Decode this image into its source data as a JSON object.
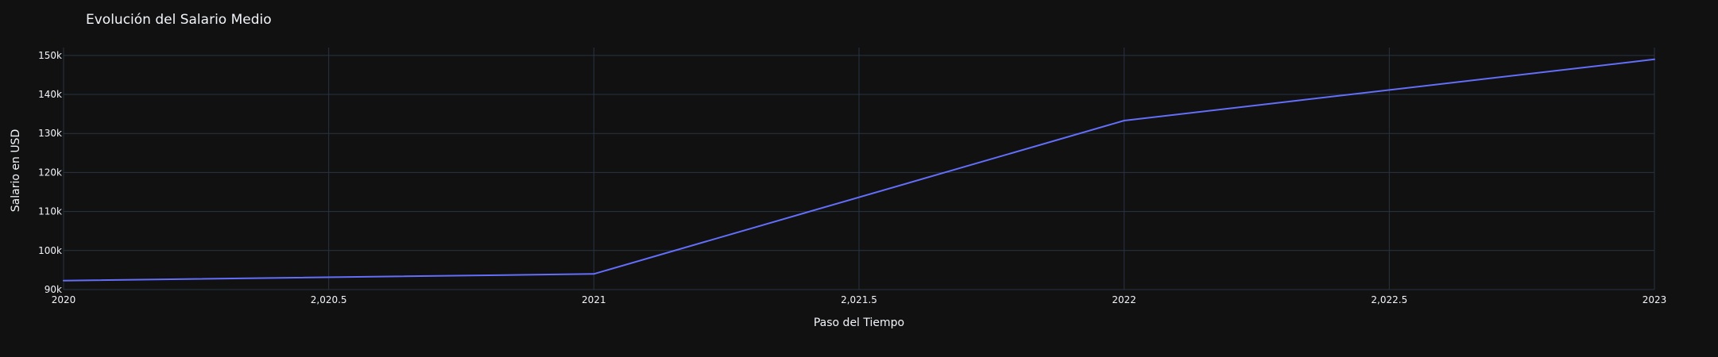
{
  "chart_data": {
    "type": "line",
    "title": "Evolución del Salario Medio",
    "xlabel": "Paso del Tiempo",
    "ylabel": "Salario en USD",
    "xlim": [
      2020,
      2023
    ],
    "ylim": [
      90000,
      152000
    ],
    "x_ticks": [
      2020,
      2020.5,
      2021,
      2021.5,
      2022,
      2022.5,
      2023
    ],
    "x_tick_labels": [
      "2020",
      "2,020.5",
      "2021",
      "2,021.5",
      "2022",
      "2,022.5",
      "2023"
    ],
    "y_ticks": [
      90000,
      100000,
      110000,
      120000,
      130000,
      140000,
      150000
    ],
    "y_tick_labels": [
      "90k",
      "100k",
      "110k",
      "120k",
      "130k",
      "140k",
      "150k"
    ],
    "grid": true,
    "series": [
      {
        "x": [
          2020,
          2021,
          2022,
          2023
        ],
        "values": [
          92300,
          94000,
          133300,
          149000
        ]
      }
    ]
  },
  "colors": {
    "background": "#111111",
    "grid": "#283442",
    "text": "#f2f5fa",
    "series": "#636efa"
  }
}
